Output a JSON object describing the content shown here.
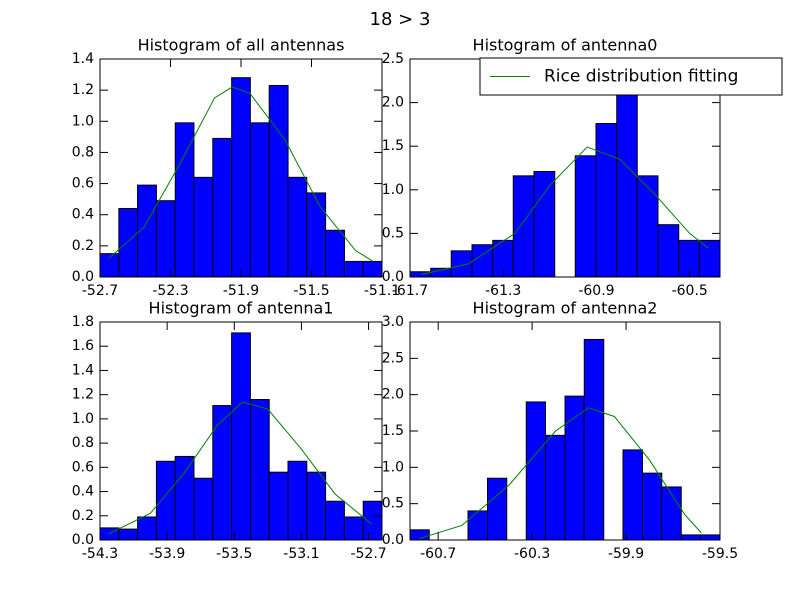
{
  "title": "18 > 3",
  "chart_data": [
    {
      "type": "histogram",
      "title": "Histogram of all antennas",
      "color": "#0000ff",
      "bins": [
        -52.7,
        -52.593,
        -52.487,
        -52.38,
        -52.273,
        -52.167,
        -52.06,
        -51.953,
        -51.847,
        -51.74,
        -51.633,
        -51.527,
        -51.42,
        -51.313,
        -51.207,
        -51.1
      ],
      "values": [
        0.15,
        0.44,
        0.59,
        0.49,
        0.99,
        0.64,
        0.89,
        1.28,
        0.99,
        1.23,
        0.64,
        0.54,
        0.3,
        0.1,
        0.1
      ],
      "fit": {
        "color": "#008000",
        "x": [
          -52.65,
          -52.45,
          -52.25,
          -52.05,
          -51.95,
          -51.85,
          -51.65,
          -51.45,
          -51.25,
          -51.15
        ],
        "values": [
          0.12,
          0.32,
          0.72,
          1.15,
          1.22,
          1.18,
          0.88,
          0.45,
          0.17,
          0.1
        ]
      },
      "xlim": [
        -52.7,
        -51.1
      ],
      "xticks": [
        -52.7,
        -52.3,
        -51.9,
        -51.5,
        -51.1
      ],
      "ylim": [
        0,
        1.4
      ],
      "yticks": [
        {
          "value": 0,
          "label": "0.0"
        },
        0.2,
        0.4,
        0.6,
        0.8,
        {
          "value": 1,
          "label": "1.0"
        },
        1.2,
        1.4
      ]
    },
    {
      "type": "histogram",
      "title": "Histogram of antenna0",
      "color": "#0000ff",
      "bins": [
        -61.7,
        -61.611,
        -61.523,
        -61.434,
        -61.345,
        -61.257,
        -61.168,
        -61.079,
        -60.991,
        -60.902,
        -60.813,
        -60.725,
        -60.636,
        -60.547,
        -60.459,
        -60.37
      ],
      "values": [
        0.06,
        0.1,
        0.3,
        0.37,
        0.42,
        1.16,
        1.21,
        0,
        1.39,
        1.76,
        2.13,
        1.16,
        0.6,
        0.42,
        0.42
      ],
      "fit": {
        "name": "Rice distribution fitting",
        "color": "#008000",
        "x": [
          -61.65,
          -61.45,
          -61.25,
          -61.1,
          -60.94,
          -60.8,
          -60.65,
          -60.5,
          -60.42
        ],
        "values": [
          0.03,
          0.15,
          0.5,
          1.05,
          1.49,
          1.35,
          0.95,
          0.5,
          0.33
        ]
      },
      "legend": "upper right",
      "xlim": [
        -61.7,
        -60.37
      ],
      "xticks": [
        -61.7,
        -61.3,
        -60.9,
        -60.5
      ],
      "ylim": [
        0,
        2.5
      ],
      "yticks": [
        {
          "value": 0,
          "label": "0.0"
        },
        0.5,
        {
          "value": 1,
          "label": "1.0"
        },
        1.5,
        {
          "value": 2,
          "label": "2.0"
        },
        2.5
      ]
    },
    {
      "type": "histogram",
      "title": "Histogram of antenna1",
      "color": "#0000ff",
      "bins": [
        -54.3,
        -54.188,
        -54.076,
        -53.964,
        -53.852,
        -53.74,
        -53.628,
        -53.516,
        -53.404,
        -53.292,
        -53.18,
        -53.068,
        -52.956,
        -52.844,
        -52.732,
        -52.62
      ],
      "values": [
        0.1,
        0.09,
        0.19,
        0.65,
        0.69,
        0.51,
        1.11,
        1.71,
        1.16,
        0.56,
        0.65,
        0.56,
        0.32,
        0.19,
        0.32
      ],
      "fit": {
        "color": "#008000",
        "x": [
          -54.25,
          -54.0,
          -53.8,
          -53.6,
          -53.45,
          -53.3,
          -53.1,
          -52.9,
          -52.68
        ],
        "values": [
          0.05,
          0.22,
          0.55,
          0.95,
          1.14,
          1.08,
          0.75,
          0.38,
          0.13
        ]
      },
      "xlim": [
        -54.3,
        -52.62
      ],
      "xticks": [
        -54.3,
        -53.9,
        -53.5,
        -53.1,
        -52.7
      ],
      "ylim": [
        0,
        1.8
      ],
      "yticks": [
        {
          "value": 0,
          "label": "0.0"
        },
        0.2,
        0.4,
        0.6,
        0.8,
        {
          "value": 1,
          "label": "1.0"
        },
        1.2,
        1.4,
        1.6,
        1.8
      ]
    },
    {
      "type": "histogram",
      "title": "Histogram of antenna2",
      "color": "#0000ff",
      "bins": [
        -60.82,
        -60.738,
        -60.655,
        -60.573,
        -60.49,
        -60.408,
        -60.325,
        -60.243,
        -60.16,
        -60.078,
        -59.995,
        -59.913,
        -59.83,
        -59.748,
        -59.665,
        -59.583,
        -59.5
      ],
      "values": [
        0.14,
        0,
        0,
        0.4,
        0.85,
        0,
        1.9,
        1.44,
        1.98,
        2.76,
        0,
        1.24,
        0.92,
        0.73,
        0.07,
        0.07
      ],
      "fit": {
        "color": "#008000",
        "x": [
          -60.78,
          -60.6,
          -60.4,
          -60.2,
          -60.06,
          -59.95,
          -59.8,
          -59.65,
          -59.58
        ],
        "values": [
          0.02,
          0.2,
          0.75,
          1.5,
          1.82,
          1.7,
          1.1,
          0.35,
          0.1
        ]
      },
      "xlim": [
        -60.82,
        -59.5
      ],
      "xticks": [
        -60.7,
        -60.3,
        -59.9,
        -59.5
      ],
      "ylim": [
        0,
        3
      ],
      "yticks": [
        {
          "value": 0,
          "label": "0.0"
        },
        0.5,
        {
          "value": 1,
          "label": "1.0"
        },
        1.5,
        {
          "value": 2,
          "label": "2.0"
        },
        2.5,
        {
          "value": 3,
          "label": "3.0"
        }
      ]
    }
  ]
}
